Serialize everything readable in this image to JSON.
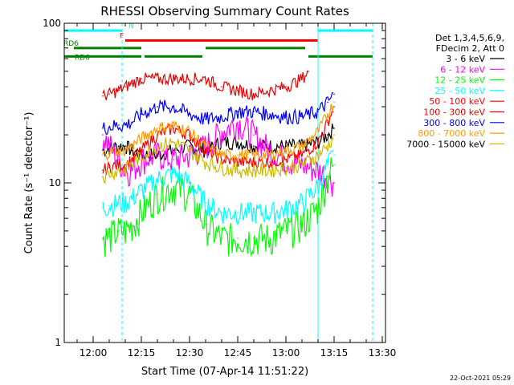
{
  "chart_data": {
    "type": "line",
    "title": "RHESSI Observing Summary Count Rates",
    "xlabel": "Start Time (07-Apr-14 11:51:22)",
    "ylabel": "Count Rate (s⁻¹ detector⁻¹)",
    "yscale": "log",
    "ylim": [
      1,
      100
    ],
    "xlim": [
      "11:51",
      "13:31"
    ],
    "x_ticks": [
      "12:00",
      "12:15",
      "12:30",
      "12:45",
      "13:00",
      "13:15",
      "13:30"
    ],
    "y_ticks": [
      "1",
      "10",
      "100"
    ],
    "timestamp": "22-Oct-2021 05:29",
    "legend": {
      "placement": "top-right",
      "header": [
        "Det 1,3,4,5,6,9,",
        "FDecim 2, Att 0"
      ]
    },
    "series": [
      {
        "name": "3 - 6 keV",
        "color": "#000000",
        "x": [
          "12:03",
          "12:08",
          "12:10",
          "12:12",
          "12:15",
          "12:20",
          "12:25",
          "12:30",
          "12:35",
          "12:40",
          "12:45",
          "12:50",
          "12:55",
          "13:00",
          "13:05",
          "13:10",
          "13:13",
          "13:15"
        ],
        "y": [
          16,
          17,
          17,
          16,
          15,
          15,
          16,
          17,
          16,
          18,
          18,
          17,
          17,
          17,
          17,
          18,
          20,
          22
        ]
      },
      {
        "name": "6 - 12 keV",
        "color": "#ff00ff",
        "x": [
          "12:03",
          "12:08",
          "12:10",
          "12:12",
          "12:15",
          "12:20",
          "12:25",
          "12:30",
          "12:35",
          "12:40",
          "12:45",
          "12:50",
          "12:55",
          "13:00",
          "13:05",
          "13:10",
          "13:13",
          "13:15"
        ],
        "y": [
          20,
          14,
          12,
          12,
          14,
          15,
          14,
          15,
          17,
          21,
          24,
          20,
          16,
          14,
          13,
          12,
          11,
          10
        ]
      },
      {
        "name": "12 - 25 keV",
        "color": "#00ff00",
        "x": [
          "12:03",
          "12:05",
          "12:08",
          "12:10",
          "12:12",
          "12:15",
          "12:20",
          "12:25",
          "12:30",
          "12:35",
          "12:40",
          "12:45",
          "12:50",
          "12:55",
          "13:00",
          "13:05",
          "13:10",
          "13:13",
          "13:15"
        ],
        "y": [
          4.5,
          4.6,
          5,
          5,
          5.4,
          6.5,
          8.5,
          9.5,
          8.5,
          5.5,
          4.5,
          4.5,
          4.5,
          4.5,
          5,
          5.5,
          7,
          11,
          13
        ]
      },
      {
        "name": "25 - 50 keV",
        "color": "#00ffff",
        "x": [
          "12:03",
          "12:05",
          "12:08",
          "12:10",
          "12:12",
          "12:15",
          "12:20",
          "12:25",
          "12:30",
          "12:35",
          "12:40",
          "12:45",
          "12:50",
          "12:55",
          "13:00",
          "13:05",
          "13:10",
          "13:13",
          "13:15"
        ],
        "y": [
          7,
          7.2,
          7.5,
          7.5,
          8,
          9,
          10.5,
          11.5,
          10,
          7.5,
          6.5,
          6.5,
          6.5,
          6.5,
          6.8,
          7.5,
          9.5,
          13,
          15
        ]
      },
      {
        "name": "50 - 100 keV",
        "color": "#ff0000",
        "x": [
          "12:03",
          "12:05",
          "12:08",
          "12:10",
          "12:12",
          "12:15",
          "12:20",
          "12:25",
          "12:30",
          "12:35",
          "12:40",
          "12:45",
          "12:50",
          "12:55",
          "13:00",
          "13:05",
          "13:10",
          "13:13",
          "13:15"
        ],
        "y": [
          12,
          12.5,
          13,
          13,
          14,
          16,
          20,
          22,
          20,
          16,
          14,
          13.5,
          13.5,
          13.5,
          14,
          15,
          18,
          24,
          30
        ]
      },
      {
        "name": "100 - 300 keV",
        "color": "#e60000",
        "x": [
          "12:03",
          "12:05",
          "12:08",
          "12:10",
          "12:12",
          "12:15",
          "12:35",
          "12:40",
          "12:45",
          "12:50",
          "12:55",
          "13:00",
          "13:05",
          "13:07"
        ],
        "y": [
          35,
          36,
          38,
          40,
          42,
          45,
          45,
          40,
          38,
          36,
          38,
          40,
          45,
          50
        ]
      },
      {
        "name": "300 - 800 keV",
        "color": "#0000ff",
        "x": [
          "12:03",
          "12:05",
          "12:08",
          "12:10",
          "12:12",
          "12:15",
          "12:20",
          "12:25",
          "12:30",
          "12:35",
          "12:40",
          "12:45",
          "12:50",
          "12:55",
          "13:00",
          "13:05",
          "13:10",
          "13:13",
          "13:15"
        ],
        "y": [
          22,
          22.5,
          23,
          23,
          24,
          27,
          30,
          30,
          27,
          25,
          26,
          28,
          28,
          27,
          26,
          26,
          28,
          32,
          36
        ]
      },
      {
        "name": "800 - 7000 keV",
        "color": "#ff9900",
        "x": [
          "12:03",
          "12:05",
          "12:08",
          "12:10",
          "12:12",
          "12:15",
          "12:20",
          "12:25",
          "12:30",
          "12:35",
          "12:40",
          "12:45",
          "12:50",
          "12:55",
          "13:00",
          "13:05",
          "13:10",
          "13:13",
          "13:15"
        ],
        "y": [
          15,
          15.5,
          16,
          16,
          17,
          19,
          22,
          23,
          21,
          17,
          15,
          15,
          15,
          15,
          16,
          17,
          21,
          27,
          32
        ]
      },
      {
        "name": "7000 - 15000 keV",
        "color": "#ccbb00",
        "x": [
          "12:03",
          "12:05",
          "12:08",
          "12:10",
          "12:12",
          "12:15",
          "12:20",
          "12:25",
          "12:30",
          "12:35",
          "12:40",
          "12:45",
          "12:50",
          "12:55",
          "13:00",
          "13:05",
          "13:10",
          "13:13",
          "13:15"
        ],
        "y": [
          11,
          11.5,
          12,
          12,
          13,
          14.5,
          17,
          18,
          16,
          13.5,
          12.5,
          12,
          12,
          12,
          12.5,
          13,
          15,
          17,
          20
        ]
      }
    ],
    "flags": [
      {
        "label": "N",
        "color": "#00ffff",
        "spans": [
          [
            "11:51",
            "12:09"
          ],
          [
            "13:10",
            "13:27"
          ]
        ],
        "level": 90
      },
      {
        "label": "F",
        "color": "#ff0000",
        "spans": [
          [
            "12:10",
            "13:10"
          ]
        ],
        "level": 78
      },
      {
        "label": "RD6",
        "color": "#008000",
        "spans": [
          [
            "11:54",
            "12:15"
          ],
          [
            "12:35",
            "13:06"
          ]
        ],
        "level": 70
      },
      {
        "label": "RD6",
        "color": "#008000",
        "spans": [
          [
            "11:51",
            "12:15"
          ],
          [
            "12:16",
            "12:34"
          ],
          [
            "13:07",
            "13:27"
          ]
        ],
        "level": 62
      }
    ],
    "vlines": [
      {
        "x": "11:51",
        "style": "solid",
        "color": "#00ffff"
      },
      {
        "x": "12:09",
        "style": "dashed",
        "color": "#00ffff"
      },
      {
        "x": "13:10",
        "style": "solid",
        "color": "#00ffff"
      },
      {
        "x": "13:27",
        "style": "dashed",
        "color": "#00ffff"
      }
    ]
  }
}
